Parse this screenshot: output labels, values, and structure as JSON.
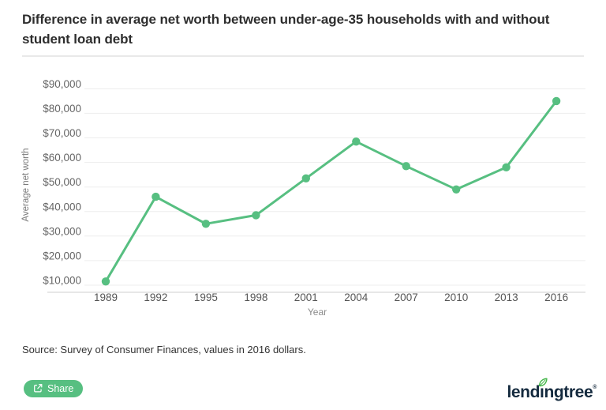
{
  "title": "Difference in average net worth between under-age-35 households with and without student loan debt",
  "chart_data": {
    "type": "line",
    "title": "Difference in average net worth between under-age-35 households with and without student loan debt",
    "x_categories": [
      "1989",
      "1992",
      "1995",
      "1998",
      "2001",
      "2004",
      "2007",
      "2010",
      "2013",
      "2016"
    ],
    "values": [
      11500,
      46000,
      35000,
      38500,
      53500,
      68500,
      58500,
      49000,
      58000,
      85000
    ],
    "xlabel": "Year",
    "ylabel": "Average net worth",
    "ylim": [
      10000,
      90000
    ],
    "ytick_step": 10000,
    "ytick_prefix": "$",
    "grid": true,
    "legend": false,
    "line_color": "#57bf81",
    "marker": "circle"
  },
  "source_note": "Source: Survey of Consumer Finances, values in 2016 dollars.",
  "share_button": {
    "label": "Share",
    "color": "#57bf81"
  },
  "logo": {
    "text": "lendingtree",
    "part1": "lend",
    "i_char": "ı",
    "part2": "ngtree",
    "registered": "®",
    "text_color": "#142a3e",
    "leaf_color": "#43b649"
  }
}
